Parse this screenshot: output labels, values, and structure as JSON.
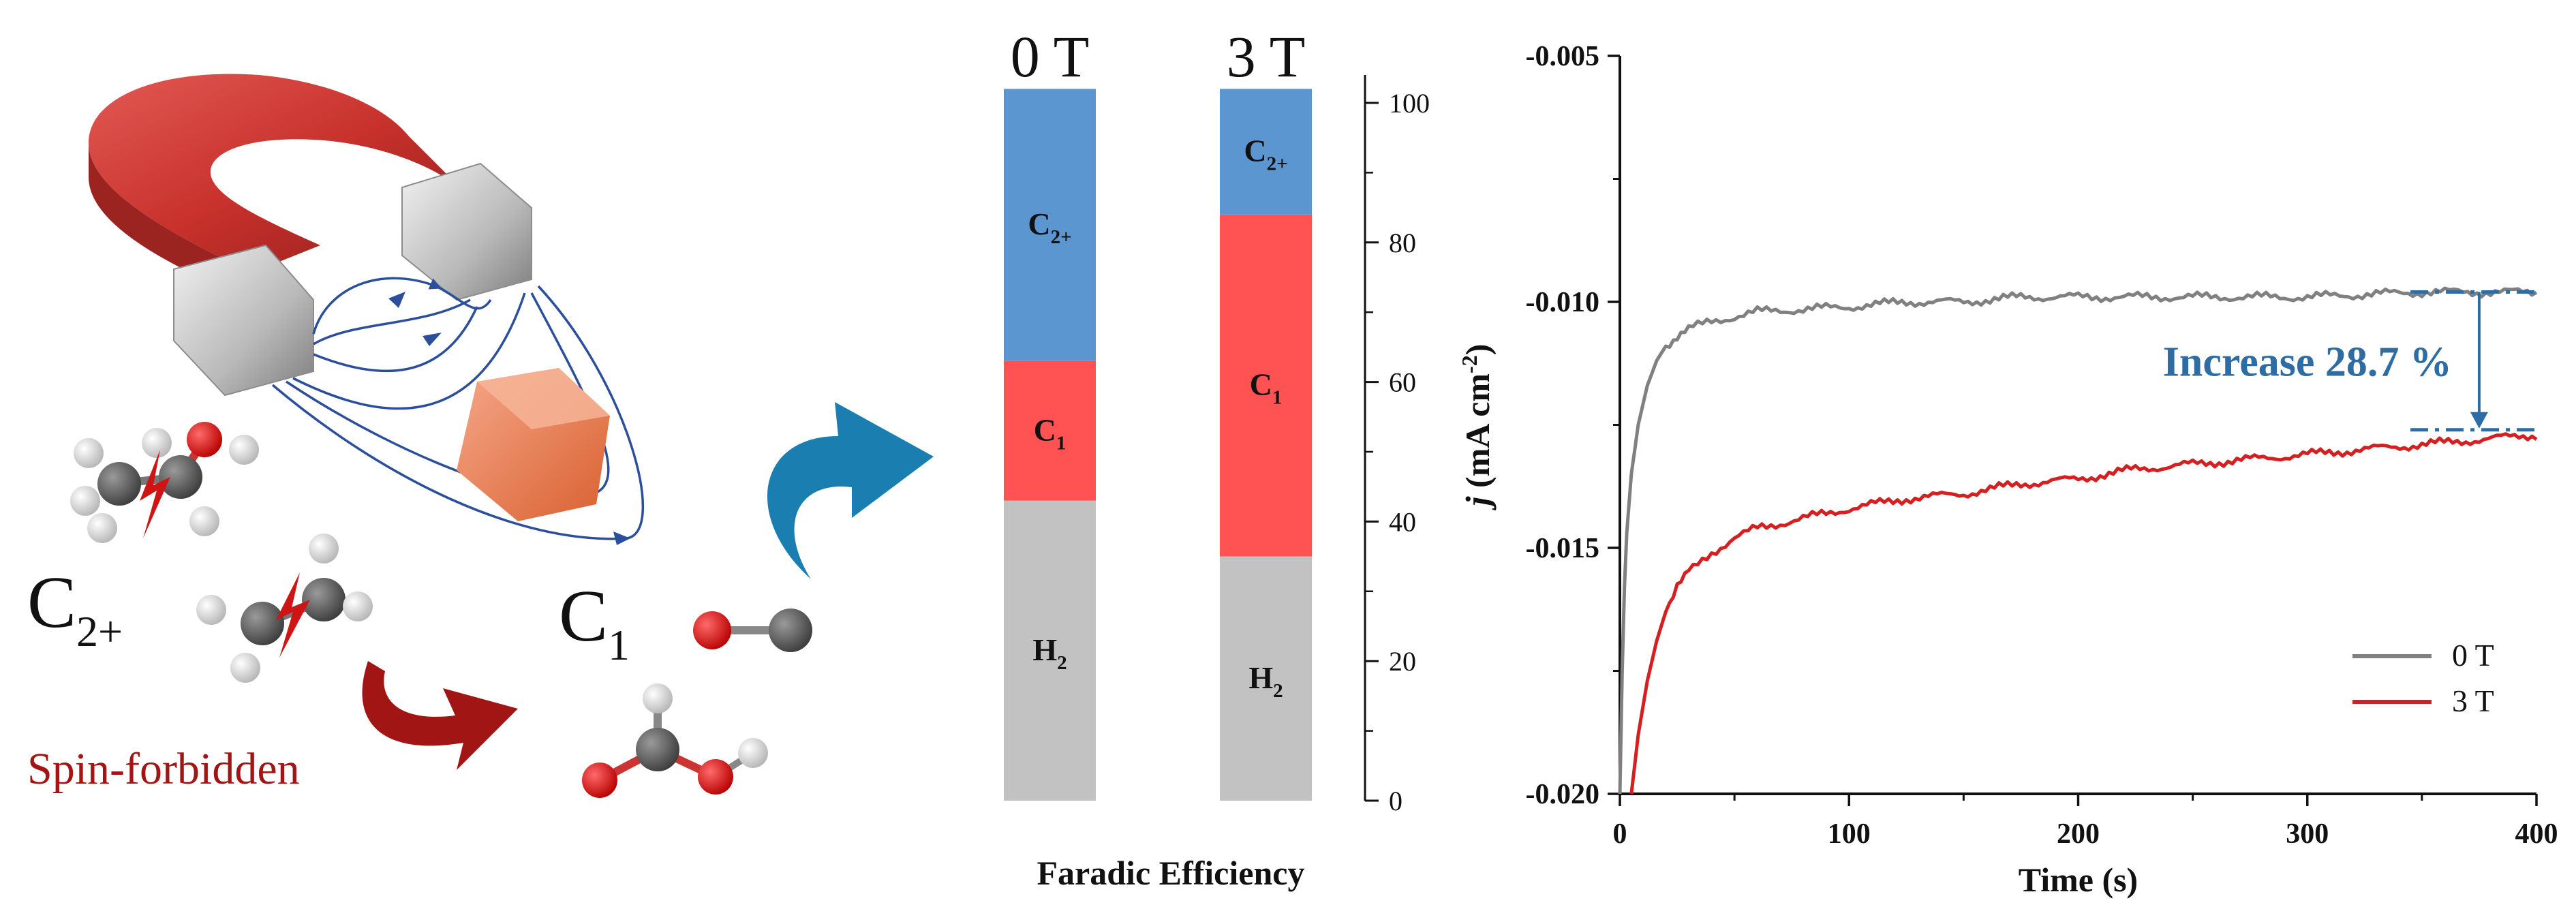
{
  "illustration": {
    "c2_label": "C",
    "c2_sub": "2+",
    "c1_label": "C",
    "c1_sub": "1",
    "spin_forbidden": "Spin-forbidden"
  },
  "colors": {
    "c2": "#5b96d0",
    "c1": "#ff5252",
    "h2": "#c2c2c2",
    "line_0T": "#808080",
    "line_3T": "#d42020",
    "annotation": "#2e6da4",
    "magnet_red": "#c8312c",
    "arrow_blue": "#1a7fb0",
    "arrow_red": "#a21515"
  },
  "chart_data": [
    {
      "type": "bar",
      "subtype": "stacked",
      "title": "",
      "categories": [
        "0 T",
        "3 T"
      ],
      "series": [
        {
          "name": "H",
          "sub": "2",
          "values": [
            43,
            35
          ]
        },
        {
          "name": "C",
          "sub": "1",
          "values": [
            20,
            49
          ]
        },
        {
          "name": "C",
          "sub": "2+",
          "values": [
            39,
            18
          ]
        }
      ],
      "xlabel": "Faradic Efficiency",
      "ylabel": "",
      "ylim": [
        0,
        104
      ],
      "yticks": [
        0,
        20,
        40,
        60,
        80,
        100
      ],
      "ytick_labels": [
        "0",
        "20",
        "40",
        "60",
        "80",
        "100"
      ],
      "axis_side": "right"
    },
    {
      "type": "line",
      "title": "",
      "xlabel": "Time (s)",
      "ylabel_main": "j",
      "ylabel_units": " (mA cm",
      "ylabel_exp": "-2",
      "ylabel_close": ")",
      "xlim": [
        0,
        400
      ],
      "ylim": [
        -0.02,
        -0.005
      ],
      "xticks": [
        0,
        100,
        200,
        300,
        400
      ],
      "xtick_labels": [
        "0",
        "100",
        "200",
        "300",
        "400"
      ],
      "yticks": [
        -0.02,
        -0.015,
        -0.01,
        -0.005
      ],
      "ytick_labels": [
        "-0.020",
        "-0.015",
        "-0.010",
        "-0.005"
      ],
      "series": [
        {
          "name": "0 T",
          "x": [
            0,
            1,
            2,
            3,
            5,
            8,
            12,
            16,
            20,
            25,
            30,
            40,
            50,
            60,
            80,
            100,
            125,
            150,
            175,
            200,
            250,
            300,
            350,
            400
          ],
          "y": [
            -0.0205,
            -0.0175,
            -0.0158,
            -0.0147,
            -0.0135,
            -0.0125,
            -0.0117,
            -0.0112,
            -0.0109,
            -0.0107,
            -0.01055,
            -0.0104,
            -0.0103,
            -0.0102,
            -0.01015,
            -0.0101,
            -0.01,
            -0.01,
            -0.0099,
            -0.0099,
            -0.0099,
            -0.0099,
            -0.0098,
            -0.0098
          ]
        },
        {
          "name": "3 T",
          "x": [
            5,
            8,
            12,
            16,
            20,
            25,
            30,
            40,
            50,
            60,
            80,
            100,
            125,
            150,
            175,
            200,
            225,
            250,
            275,
            300,
            325,
            350,
            375,
            400
          ],
          "y": [
            -0.02,
            -0.0188,
            -0.0177,
            -0.0169,
            -0.0163,
            -0.0158,
            -0.0155,
            -0.0151,
            -0.0148,
            -0.0146,
            -0.0144,
            -0.0142,
            -0.014,
            -0.0139,
            -0.0137,
            -0.0136,
            -0.0134,
            -0.0133,
            -0.0132,
            -0.0131,
            -0.013,
            -0.0129,
            -0.0128,
            -0.0127
          ]
        }
      ],
      "legend_position": "bottom-right",
      "annotation": {
        "text": "Increase 28.7 %",
        "x": 375,
        "from": -0.0098,
        "to": -0.0126
      }
    }
  ]
}
